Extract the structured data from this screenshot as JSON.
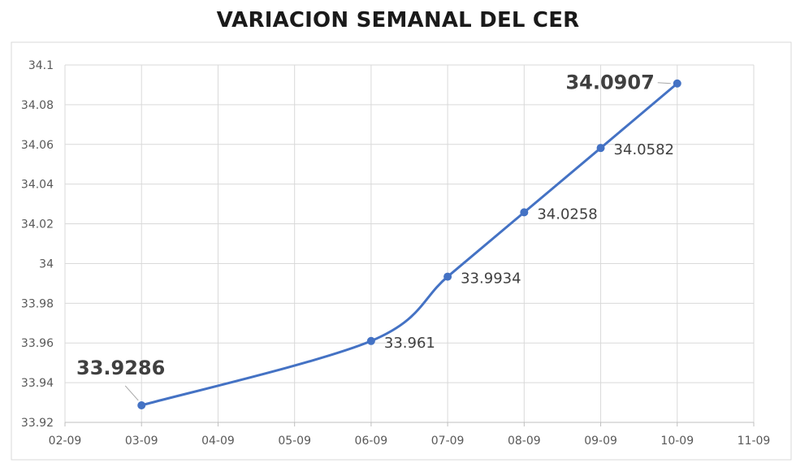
{
  "chart_data": {
    "type": "line",
    "title": "VARIACION SEMANAL DEL CER",
    "xlabel": "",
    "ylabel": "",
    "x_ticks": [
      "02-09",
      "03-09",
      "04-09",
      "05-09",
      "06-09",
      "07-09",
      "08-09",
      "09-09",
      "10-09",
      "11-09"
    ],
    "y_ticks": [
      "33.92",
      "33.94",
      "33.96",
      "33.98",
      "34",
      "34.02",
      "34.04",
      "34.06",
      "34.08",
      "34.1"
    ],
    "ylim": [
      33.92,
      34.1
    ],
    "grid": true,
    "series": [
      {
        "x": [
          "03-09",
          "06-09",
          "07-09",
          "08-09",
          "09-09",
          "10-09"
        ],
        "values": [
          33.9286,
          33.961,
          33.9934,
          34.0258,
          34.0582,
          34.0907
        ],
        "labels": [
          "33.9286",
          "33.961",
          "33.9934",
          "34.0258",
          "34.0582",
          "34.0907"
        ],
        "color": "#4472c4"
      }
    ]
  }
}
